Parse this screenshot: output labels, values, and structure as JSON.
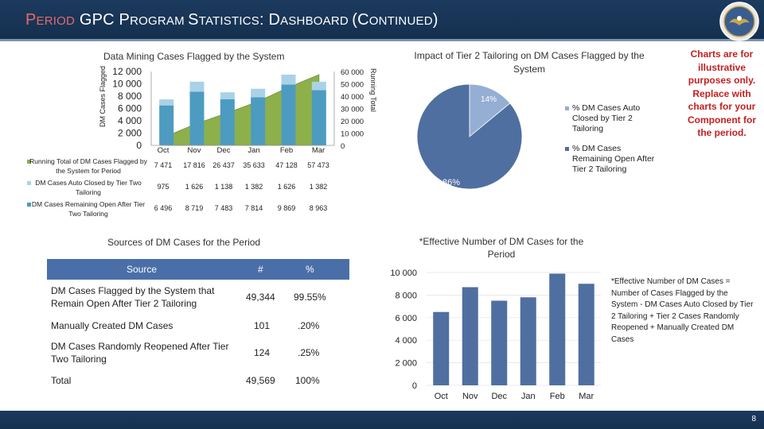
{
  "header": {
    "title_prefix": "P",
    "title_prefix_rest": "ERIOD",
    "title_rest": [
      {
        "big": "GPC ",
        "small": ""
      },
      {
        "big": "P",
        "small": "ROGRAM "
      },
      {
        "big": "S",
        "small": "TATISTICS"
      },
      {
        "big": ": D",
        "small": "ASHBOARD "
      },
      {
        "big": "(C",
        "small": "ONTINUED"
      },
      {
        "big": ")",
        "small": ""
      }
    ],
    "seal_icon": "dod-seal-icon"
  },
  "combo_chart": {
    "title": "Data Mining Cases Flagged by the System",
    "ylabel_left": "DM Cases Flagged",
    "ylabel_right": "Running Total",
    "left_ticks": [
      "12 000",
      "10 000",
      "8 000",
      "6 000",
      "4 000",
      "2 000",
      "0"
    ],
    "right_ticks": [
      "60 000",
      "50 000",
      "40 000",
      "30 000",
      "20 000",
      "10 000",
      "0"
    ],
    "months": [
      "Oct",
      "Nov",
      "Dec",
      "Jan",
      "Feb",
      "Mar"
    ],
    "rows": [
      {
        "label": "Running Total of DM Cases Flagged by the System for Period",
        "values": [
          "7 471",
          "17 816",
          "26 437",
          "35 633",
          "47 128",
          "57 473"
        ]
      },
      {
        "label": "DM Cases Auto Closed by Tier Two Tailoring",
        "values": [
          "975",
          "1 626",
          "1 138",
          "1 382",
          "1 626",
          "1 382"
        ]
      },
      {
        "label": "DM Cases Remaining Open After Tier Two Tailoring",
        "values": [
          "6 496",
          "8 719",
          "7 483",
          "7 814",
          "9 869",
          "8 963"
        ]
      }
    ]
  },
  "pie_chart": {
    "title": "Impact of Tier 2 Tailoring on DM Cases Flagged by the System",
    "legend": [
      "% DM Cases Auto Closed by Tier 2 Tailoring",
      "% DM Cases Remaining Open After Tier 2 Tailoring"
    ],
    "label_small": "14%",
    "label_large": "86%"
  },
  "note": "Charts are for illustrative purposes only. Replace with charts for your Component for the period.",
  "sources_table": {
    "title": "Sources of DM Cases for the Period",
    "headers": [
      "Source",
      "#",
      "%"
    ],
    "rows": [
      {
        "source": "DM Cases Flagged by the System that Remain Open After Tier 2 Tailoring",
        "count": "49,344",
        "pct": "99.55%"
      },
      {
        "source": "Manually Created DM Cases",
        "count": "101",
        "pct": ".20%"
      },
      {
        "source": "DM Cases Randomly Reopened After Tier Two Tailoring",
        "count": "124",
        "pct": ".25%"
      },
      {
        "source": "Total",
        "count": "49,569",
        "pct": "100%"
      }
    ]
  },
  "effective_chart": {
    "title": "*Effective Number of DM Cases for the Period",
    "yticks": [
      "10 000",
      "8 000",
      "6 000",
      "4 000",
      "2 000",
      "0"
    ],
    "months": [
      "Oct",
      "Nov",
      "Dec",
      "Jan",
      "Feb",
      "Mar"
    ],
    "formula": "*Effective Number of DM Cases = Number of Cases Flagged by the System - DM Cases Auto Closed by Tier 2 Tailoring + Tier 2 Cases Randomly Reopened + Manually Created DM Cases"
  },
  "footer": {
    "page": "8"
  },
  "colors": {
    "navy": "#1c3a5e",
    "bar_teal": "#4d9bc0",
    "area_green": "#8db04b",
    "pie_dark": "#4f6fa0",
    "pie_light": "#95aed4",
    "table_header": "#4a6fa8",
    "note_red": "#c41f1f"
  },
  "chart_data": [
    {
      "type": "bar",
      "title": "Data Mining Cases Flagged by the System",
      "categories": [
        "Oct",
        "Nov",
        "Dec",
        "Jan",
        "Feb",
        "Mar"
      ],
      "series": [
        {
          "name": "Running Total of DM Cases Flagged by the System for Period",
          "values": [
            7471,
            17816,
            26437,
            35633,
            47128,
            57473
          ]
        },
        {
          "name": "DM Cases Auto Closed by Tier Two Tailoring",
          "values": [
            975,
            1626,
            1138,
            1382,
            1626,
            1382
          ]
        },
        {
          "name": "DM Cases Remaining Open After Tier Two Tailoring",
          "values": [
            6496,
            8719,
            7483,
            7814,
            9869,
            8963
          ]
        }
      ],
      "ylabel": "DM Cases Flagged",
      "ylim": [
        0,
        12000
      ],
      "y2label": "Running Total",
      "y2lim": [
        0,
        60000
      ]
    },
    {
      "type": "pie",
      "title": "Impact of Tier 2 Tailoring on DM Cases Flagged by the System",
      "categories": [
        "% DM Cases Auto Closed by Tier 2 Tailoring",
        "% DM Cases Remaining Open After Tier 2 Tailoring"
      ],
      "values": [
        14,
        86
      ]
    },
    {
      "type": "bar",
      "title": "*Effective Number of DM Cases for the Period",
      "categories": [
        "Oct",
        "Nov",
        "Dec",
        "Jan",
        "Feb",
        "Mar"
      ],
      "values": [
        6500,
        8700,
        7500,
        7800,
        9900,
        9000
      ],
      "ylim": [
        0,
        10000
      ]
    }
  ]
}
